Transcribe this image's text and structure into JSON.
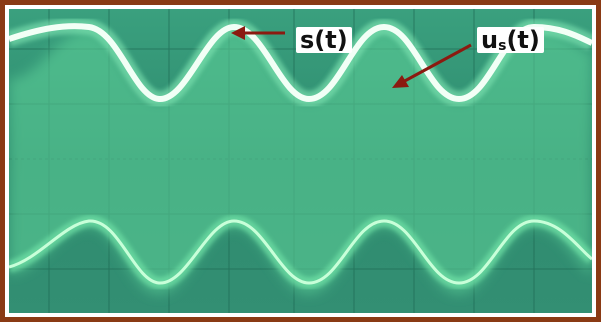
{
  "annotations": {
    "s_label": "s(t)",
    "us_label_base": "u",
    "us_label_sub": "s",
    "us_label_tail": "(t)"
  },
  "colors": {
    "frame": "#8a3a14",
    "screen": "#2f8f72",
    "trace_glow": "#7cf0b0",
    "trace_core": "#f2fff6",
    "arrow": "#8b1a10"
  }
}
